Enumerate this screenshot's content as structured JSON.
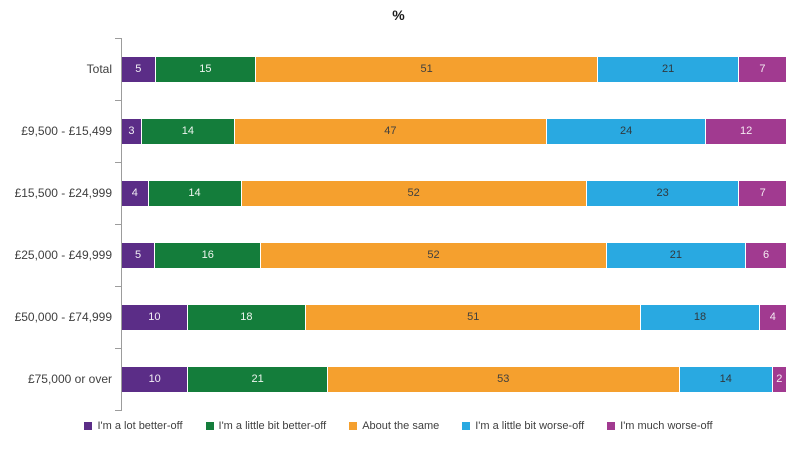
{
  "chart_data": {
    "type": "bar",
    "orientation": "horizontal",
    "stacked": true,
    "title": "%",
    "xlabel": "",
    "ylabel": "",
    "xlim": [
      0,
      100
    ],
    "grid": false,
    "legend_position": "bottom",
    "axis_color": "#9c9c9c",
    "category_label_color": "#404040",
    "categories": [
      "Total",
      "£9,500 - £15,499",
      "£15,500 - £24,999",
      "£25,000 - £49,999",
      "£50,000 - £74,999",
      "£75,000 or over"
    ],
    "series": [
      {
        "name": "I'm a lot better-off",
        "color": "#5b2d87",
        "label_color": "#f2f0f5",
        "values": [
          5,
          3,
          4,
          5,
          10,
          10
        ]
      },
      {
        "name": "I'm a little bit better-off",
        "color": "#147d3b",
        "label_color": "#eef5ef",
        "values": [
          15,
          14,
          14,
          16,
          18,
          21
        ]
      },
      {
        "name": "About the same",
        "color": "#f5a02e",
        "label_color": "#3f3f3f",
        "values": [
          51,
          47,
          52,
          52,
          51,
          53
        ]
      },
      {
        "name": "I'm a little bit worse-off",
        "color": "#29a9e1",
        "label_color": "#30383d",
        "values": [
          21,
          24,
          23,
          21,
          18,
          14
        ]
      },
      {
        "name": "I'm much worse-off",
        "color": "#a13a90",
        "label_color": "#f4ebf2",
        "values": [
          7,
          12,
          7,
          6,
          4,
          2
        ]
      }
    ]
  }
}
